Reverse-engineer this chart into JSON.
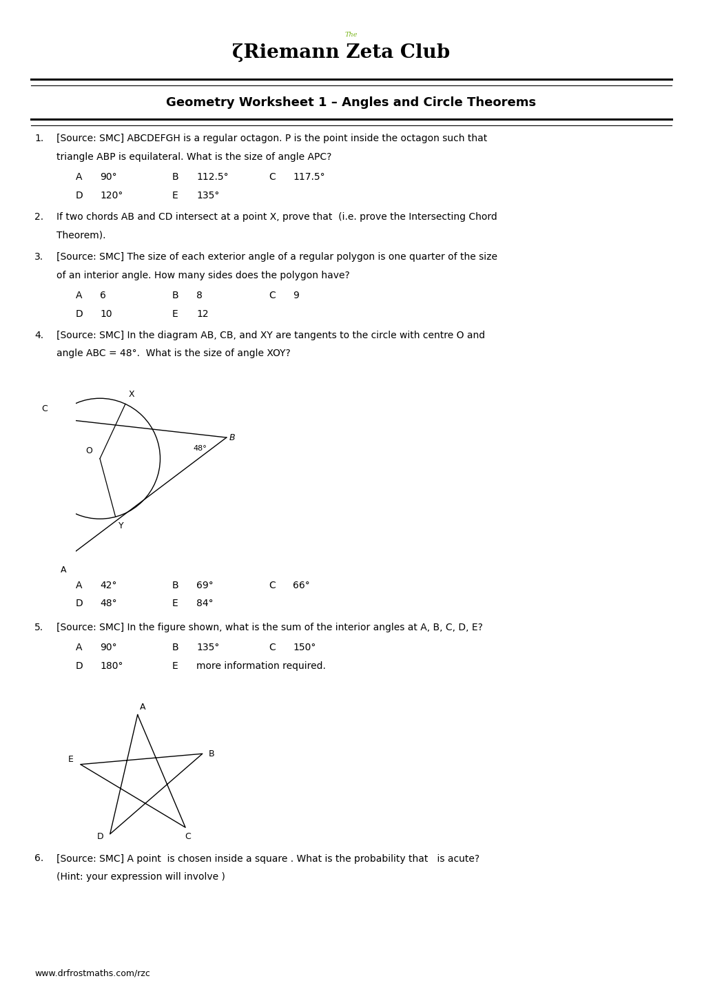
{
  "title": "Geometry Worksheet 1 – Angles and Circle Theorems",
  "logo_text_the": "The",
  "logo_text_main": "ζRiemann Zeta Club",
  "footer": "www.drfrostmaths.com/rzc",
  "background_color": "#ffffff",
  "questions": [
    {
      "num": "1.",
      "text_lines": [
        "[Source: SMC] ABCDEFGH is a regular octagon. P is the point inside the octagon such that",
        "triangle ABP is equilateral. What is the size of angle APC?"
      ],
      "options": [
        [
          [
            "A",
            "90°"
          ],
          [
            "B",
            "112.5°"
          ],
          [
            "C",
            "117.5°"
          ]
        ],
        [
          [
            "D",
            "120°"
          ],
          [
            "E",
            "135°"
          ]
        ]
      ]
    },
    {
      "num": "2.",
      "text_lines": [
        "If two chords AB and CD intersect at a point X, prove that  (i.e. prove the Intersecting Chord",
        "Theorem)."
      ]
    },
    {
      "num": "3.",
      "text_lines": [
        "[Source: SMC] The size of each exterior angle of a regular polygon is one quarter of the size",
        "of an interior angle. How many sides does the polygon have?"
      ],
      "options": [
        [
          [
            "A",
            "6"
          ],
          [
            "B",
            "8"
          ],
          [
            "C",
            "9"
          ]
        ],
        [
          [
            "D",
            "10"
          ],
          [
            "E",
            "12"
          ]
        ]
      ]
    },
    {
      "num": "4.",
      "text_lines": [
        "[Source: SMC] In the diagram AB, CB, and XY are tangents to the circle with centre O and",
        "angle ABC = 48°.  What is the size of angle XOY?"
      ],
      "has_diagram_circle": true,
      "options": [
        [
          [
            "A",
            "42°"
          ],
          [
            "B",
            "69°"
          ],
          [
            "C",
            "66°"
          ]
        ],
        [
          [
            "D",
            "48°"
          ],
          [
            "E",
            "84°"
          ]
        ]
      ]
    },
    {
      "num": "5.",
      "text_lines": [
        "[Source: SMC] In the figure shown, what is the sum of the interior angles at A, B, C, D, E?"
      ],
      "has_diagram_star": true,
      "options": [
        [
          [
            "A",
            "90°"
          ],
          [
            "B",
            "135°"
          ],
          [
            "C",
            "150°"
          ]
        ],
        [
          [
            "D",
            "180°"
          ],
          [
            "E",
            "more information required."
          ]
        ]
      ]
    },
    {
      "num": "6.",
      "text_lines": [
        "[Source: SMC] A point  is chosen inside a square . What is the probability that   is acute?",
        "(Hint: your expression will involve )"
      ]
    }
  ],
  "col_positions": [
    1.1,
    1.45,
    2.5,
    2.85,
    3.9,
    4.25
  ],
  "lh": 0.265,
  "fs": 10.0
}
